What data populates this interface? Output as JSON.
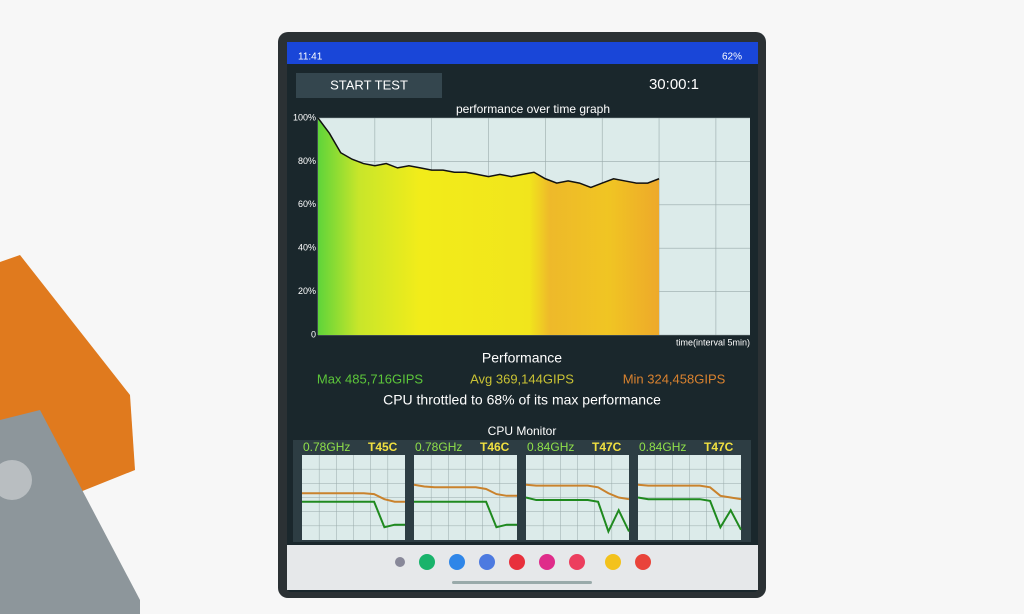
{
  "status_bar": {
    "time": "11:41",
    "battery": "62%"
  },
  "toolbar": {
    "button": "START TEST",
    "timer": "30:00:1"
  },
  "graph": {
    "type": "area",
    "title": "performance over time graph",
    "x_label": "time(interval 5min)",
    "x": [
      0,
      1,
      2,
      3,
      4,
      5,
      6,
      7,
      8,
      9,
      10,
      11,
      12,
      13,
      14,
      15,
      16,
      17,
      18,
      19,
      20,
      21,
      22,
      23,
      24,
      25,
      26,
      27,
      28,
      29,
      30
    ],
    "values": [
      100,
      93,
      84,
      81,
      79,
      78,
      79,
      77,
      78,
      77,
      76,
      76,
      75,
      75,
      74,
      73,
      74,
      73,
      74,
      75,
      72,
      70,
      71,
      70,
      68,
      70,
      72,
      71,
      70,
      70,
      72
    ],
    "xlim": [
      0,
      38
    ],
    "xgrid": [
      0,
      5,
      10,
      15,
      20,
      25,
      30,
      35
    ],
    "ylim": [
      0,
      100
    ],
    "yticks": [
      0,
      {
        "value": 20,
        "label": "20%"
      },
      {
        "value": 40,
        "label": "40%"
      },
      {
        "value": 60,
        "label": "60%"
      },
      {
        "value": 80,
        "label": "80%"
      },
      {
        "value": 100,
        "label": "100%"
      }
    ],
    "line_color": "#111111",
    "grid": true
  },
  "performance": {
    "heading": "Performance",
    "max": "Max 485,716GIPS",
    "avg": "Avg 369,144GIPS",
    "min": "Min 324,458GIPS",
    "summary": "CPU throttled to 68% of its max performance"
  },
  "cpu_monitor": {
    "title": "CPU Monitor",
    "ylim": [
      0,
      100
    ],
    "cores": [
      {
        "freq": "0.78GHz",
        "temp": "T45C",
        "temp_trace": [
          55,
          55,
          55,
          55,
          55,
          55,
          55,
          54,
          48,
          45,
          45
        ],
        "freq_trace": [
          45,
          45,
          45,
          45,
          45,
          45,
          45,
          45,
          15,
          18,
          18
        ]
      },
      {
        "freq": "0.78GHz",
        "temp": "T46C",
        "temp_trace": [
          65,
          63,
          62,
          62,
          62,
          62,
          62,
          60,
          54,
          52,
          52
        ],
        "freq_trace": [
          45,
          45,
          45,
          45,
          45,
          45,
          45,
          45,
          15,
          18,
          18
        ]
      },
      {
        "freq": "0.84GHz",
        "temp": "T47C",
        "temp_trace": [
          65,
          64,
          64,
          64,
          64,
          64,
          64,
          62,
          55,
          50,
          48
        ],
        "freq_trace": [
          50,
          47,
          47,
          47,
          47,
          47,
          47,
          45,
          10,
          35,
          10
        ]
      },
      {
        "freq": "0.84GHz",
        "temp": "T47C",
        "temp_trace": [
          65,
          64,
          64,
          64,
          64,
          64,
          64,
          62,
          52,
          50,
          48
        ],
        "freq_trace": [
          50,
          48,
          48,
          48,
          48,
          48,
          48,
          46,
          15,
          35,
          12
        ]
      }
    ]
  }
}
